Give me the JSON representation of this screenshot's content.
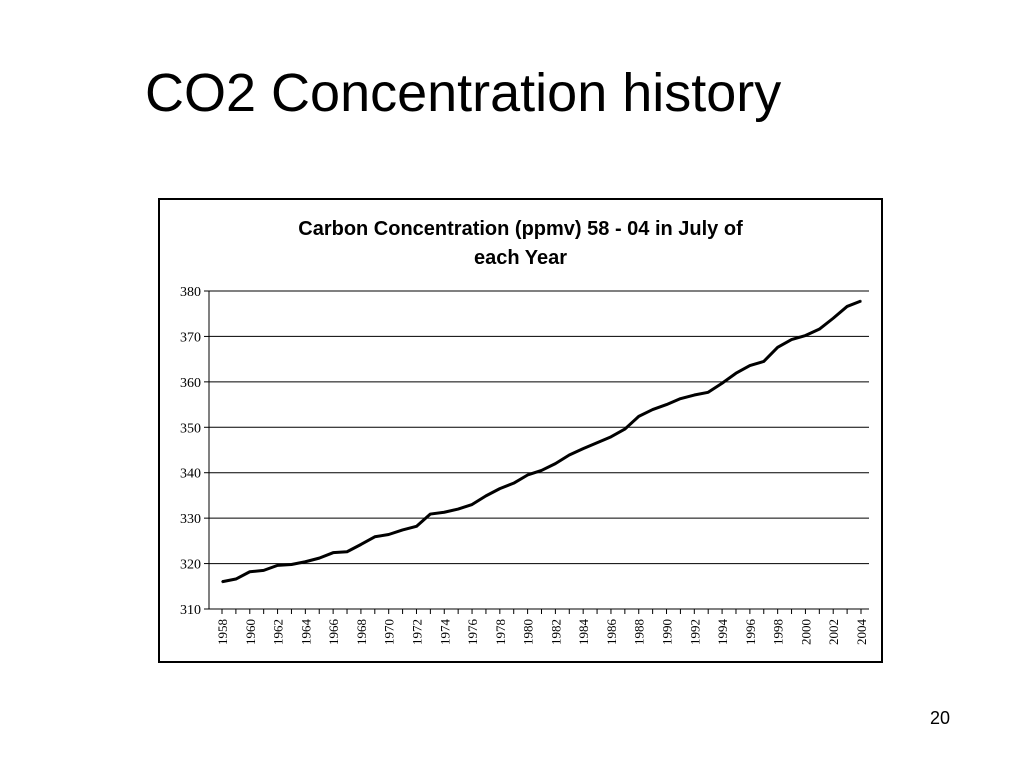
{
  "slide": {
    "title": "CO2 Concentration history",
    "page_number": "20"
  },
  "chart_data": {
    "type": "line",
    "title_lines": [
      "Carbon Concentration (ppmv) 58 - 04 in July of",
      "each Year"
    ],
    "title": "Carbon Concentration (ppmv) 58 - 04 in July of each Year",
    "xlabel": "",
    "ylabel": "",
    "ylim": [
      310,
      380
    ],
    "yticks": [
      "380",
      "370",
      "360",
      "350",
      "340",
      "330",
      "320",
      "310"
    ],
    "xticks": [
      "1958",
      "1960",
      "1962",
      "1964",
      "1966",
      "1968",
      "1970",
      "1972",
      "1974",
      "1976",
      "1978",
      "1980",
      "1982",
      "1984",
      "1986",
      "1988",
      "1990",
      "1992",
      "1994",
      "1996",
      "1998",
      "2000",
      "2002",
      "2004"
    ],
    "grid": true,
    "legend": "none",
    "x": [
      1958,
      1959,
      1960,
      1961,
      1962,
      1963,
      1964,
      1965,
      1966,
      1967,
      1968,
      1969,
      1970,
      1971,
      1972,
      1973,
      1974,
      1975,
      1976,
      1977,
      1978,
      1979,
      1980,
      1981,
      1982,
      1983,
      1984,
      1985,
      1986,
      1987,
      1988,
      1989,
      1990,
      1991,
      1992,
      1993,
      1994,
      1995,
      1996,
      1997,
      1998,
      1999,
      2000,
      2001,
      2002,
      2003,
      2004
    ],
    "series": [
      {
        "values": [
          316.0,
          316.6,
          318.2,
          318.5,
          319.6,
          319.8,
          320.4,
          321.2,
          322.4,
          322.6,
          324.2,
          325.9,
          326.4,
          327.4,
          328.2,
          330.9,
          331.3,
          332.0,
          333.0,
          334.9,
          336.5,
          337.7,
          339.5,
          340.5,
          342.0,
          343.9,
          345.3,
          346.6,
          347.9,
          349.6,
          352.4,
          353.9,
          355.0,
          356.3,
          357.1,
          357.7,
          359.7,
          361.9,
          363.6,
          364.5,
          367.6,
          369.3,
          370.2,
          371.6,
          374.0,
          376.6,
          377.8
        ]
      }
    ],
    "colors": {
      "line": "#000000",
      "grid": "#000000",
      "background": "#ffffff"
    }
  }
}
